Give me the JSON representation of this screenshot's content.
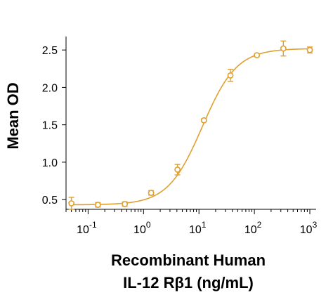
{
  "chart_data": {
    "type": "scatter",
    "xscale": "log",
    "xlim": [
      0.04,
      1300
    ],
    "ylim": [
      0.37,
      2.68
    ],
    "yticks": [
      0.5,
      1.0,
      1.5,
      2.0,
      2.5
    ],
    "ytick_labels": [
      "0.5",
      "1.0",
      "1.5",
      "2.0",
      "2.5"
    ],
    "xticks": [
      {
        "value": 0.1,
        "base": "10",
        "exp": "-1"
      },
      {
        "value": 1,
        "base": "10",
        "exp": "0"
      },
      {
        "value": 10,
        "base": "10",
        "exp": "1"
      },
      {
        "value": 100,
        "base": "10",
        "exp": "2"
      },
      {
        "value": 1000,
        "base": "10",
        "exp": "3"
      }
    ],
    "ylabel": "Mean OD",
    "xlabel_line1": "Recombinant Human",
    "xlabel_line2": "IL-12 Rβ1 (ng/mL)",
    "color": "#E0A030",
    "grid": false,
    "series": [
      {
        "x": [
          0.05,
          0.15,
          0.46,
          1.37,
          4.1,
          12.3,
          37,
          111,
          333,
          1000
        ],
        "y": [
          0.45,
          0.43,
          0.44,
          0.59,
          0.9,
          1.56,
          2.16,
          2.43,
          2.52,
          2.5
        ],
        "err": [
          0.08,
          0.03,
          0.03,
          0.03,
          0.07,
          0.02,
          0.08,
          0.02,
          0.1,
          0.04
        ]
      }
    ],
    "fit": {
      "model": "4PL",
      "bottom": 0.43,
      "top": 2.52,
      "ec50": 11.5,
      "hill": 1.4
    }
  }
}
